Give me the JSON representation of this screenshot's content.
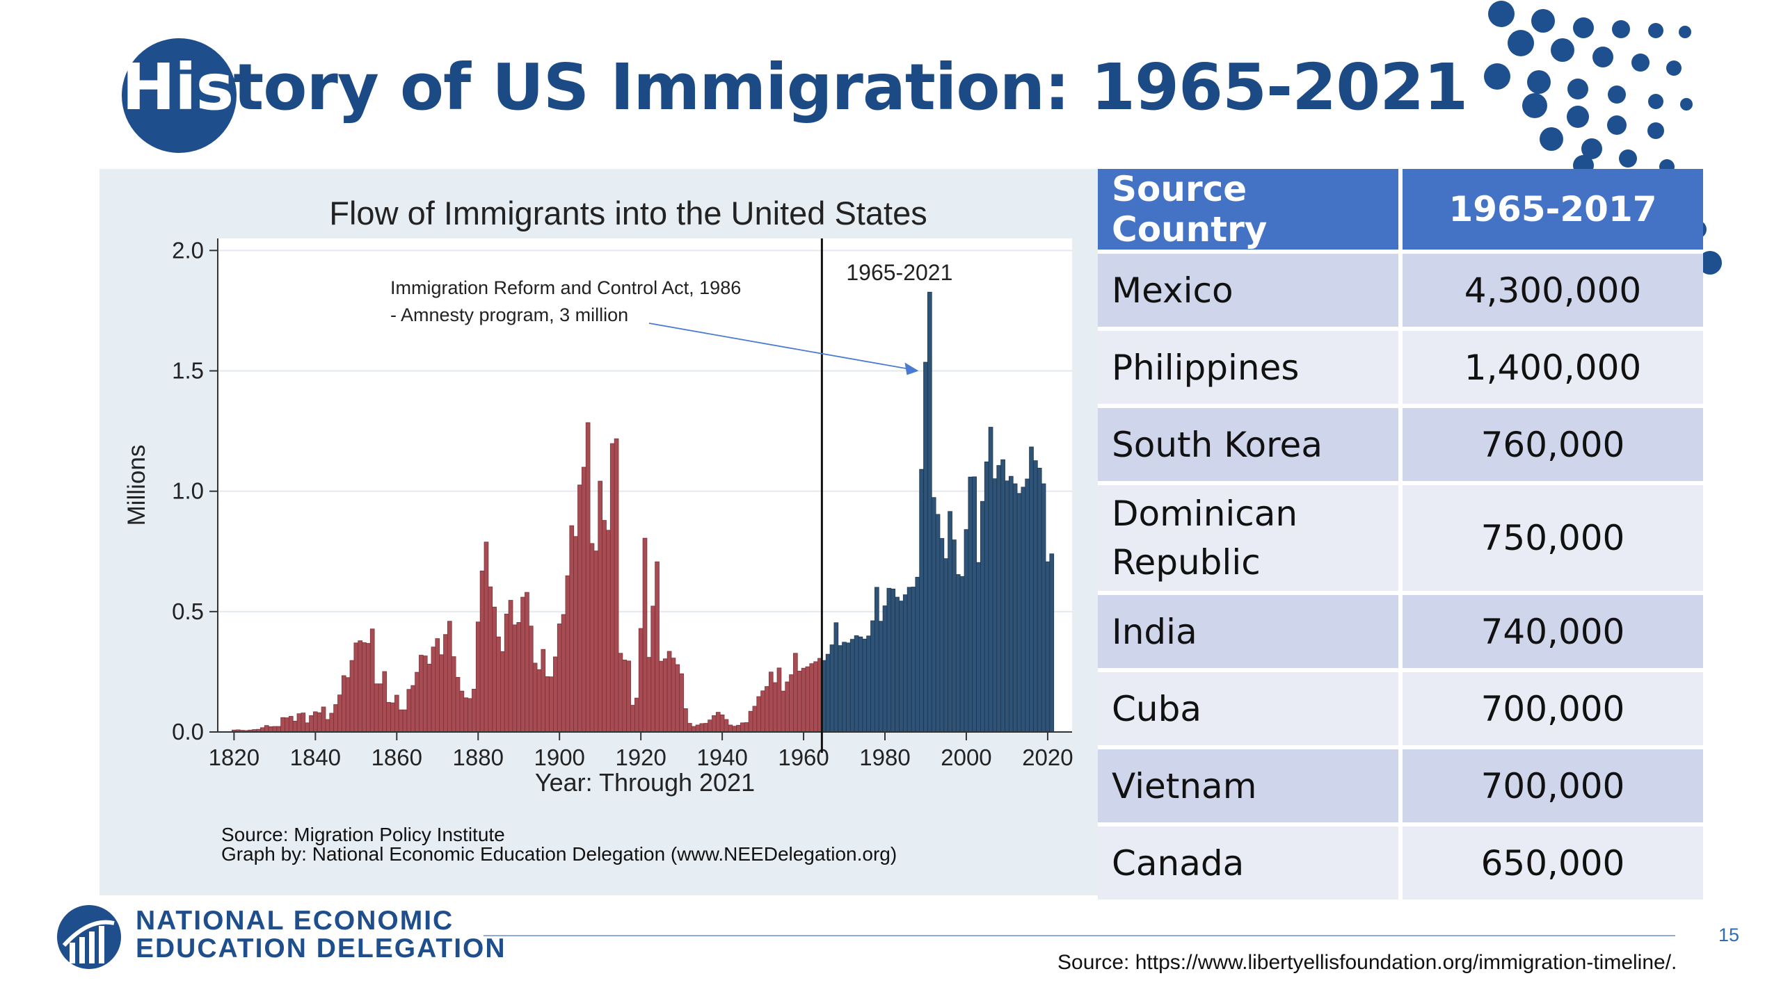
{
  "slide": {
    "title": "History of US Immigration: 1965-2021",
    "title_highlight": "His",
    "title_rest": "tory of US Immigration: 1965-2021",
    "page_number": "15",
    "source_note": "Source: https://www.libertyellisfoundation.org/immigration-timeline/.",
    "logo_line1": "NATIONAL ECONOMIC",
    "logo_line2": "EDUCATION DELEGATION",
    "colors": {
      "brand": "#1f4e8c",
      "table_header": "#4472c4",
      "pre_1965": "#a74c52",
      "post_1965": "#2f5376"
    }
  },
  "chart_data": {
    "type": "bar",
    "title": "Flow of Immigrants into the United States",
    "xlabel": "Year: Through 2021",
    "ylabel": "Millions",
    "xlim": [
      1816,
      2026
    ],
    "ylim": [
      0,
      2.05
    ],
    "xticks": [
      1820,
      1840,
      1860,
      1880,
      1900,
      1920,
      1940,
      1960,
      1980,
      2000,
      2020
    ],
    "yticks": [
      "0.0",
      "0.5",
      "1.0",
      "1.5",
      "2.0"
    ],
    "grid": true,
    "divider_year": 1965,
    "period_label": "1965-2021",
    "annotation": {
      "line1": "Immigration Reform and Control Act, 1986",
      "line2": "- Amnesty program, 3 million",
      "points_to_year": 1990,
      "points_to_value": 1.5
    },
    "series": [
      {
        "period": "1820-1964",
        "start_year": 1820,
        "values": [
          0.008,
          0.009,
          0.007,
          0.006,
          0.008,
          0.01,
          0.011,
          0.018,
          0.027,
          0.022,
          0.023,
          0.023,
          0.06,
          0.059,
          0.065,
          0.045,
          0.076,
          0.079,
          0.038,
          0.068,
          0.084,
          0.08,
          0.104,
          0.052,
          0.078,
          0.114,
          0.154,
          0.234,
          0.226,
          0.297,
          0.37,
          0.379,
          0.371,
          0.368,
          0.428,
          0.2,
          0.2,
          0.251,
          0.123,
          0.121,
          0.153,
          0.092,
          0.092,
          0.177,
          0.193,
          0.248,
          0.319,
          0.316,
          0.282,
          0.353,
          0.388,
          0.321,
          0.405,
          0.46,
          0.313,
          0.227,
          0.17,
          0.142,
          0.139,
          0.178,
          0.457,
          0.669,
          0.789,
          0.603,
          0.519,
          0.395,
          0.334,
          0.49,
          0.547,
          0.445,
          0.455,
          0.56,
          0.58,
          0.44,
          0.286,
          0.259,
          0.343,
          0.23,
          0.229,
          0.312,
          0.449,
          0.488,
          0.649,
          0.857,
          0.812,
          1.026,
          1.1,
          1.285,
          0.783,
          0.752,
          1.042,
          0.879,
          0.838,
          1.198,
          1.218,
          0.327,
          0.299,
          0.295,
          0.111,
          0.141,
          0.43,
          0.805,
          0.31,
          0.523,
          0.707,
          0.294,
          0.304,
          0.335,
          0.307,
          0.28,
          0.242,
          0.097,
          0.036,
          0.023,
          0.029,
          0.035,
          0.036,
          0.05,
          0.068,
          0.082,
          0.071,
          0.052,
          0.029,
          0.024,
          0.028,
          0.038,
          0.039,
          0.086,
          0.107,
          0.147,
          0.171,
          0.189,
          0.249,
          0.205,
          0.266,
          0.17,
          0.208,
          0.238,
          0.327,
          0.253,
          0.265,
          0.271,
          0.284,
          0.292,
          0.306
        ]
      },
      {
        "period": "1965-2021",
        "start_year": 1965,
        "values": [
          0.297,
          0.323,
          0.362,
          0.454,
          0.359,
          0.373,
          0.37,
          0.385,
          0.4,
          0.395,
          0.386,
          0.399,
          0.462,
          0.601,
          0.46,
          0.524,
          0.597,
          0.594,
          0.56,
          0.544,
          0.57,
          0.601,
          0.602,
          0.643,
          1.091,
          1.536,
          1.827,
          0.974,
          0.904,
          0.804,
          0.72,
          0.916,
          0.798,
          0.654,
          0.646,
          0.841,
          1.059,
          1.06,
          0.704,
          0.958,
          1.122,
          1.266,
          1.052,
          1.107,
          1.131,
          1.043,
          1.062,
          1.031,
          0.991,
          1.017,
          1.051,
          1.184,
          1.127,
          1.096,
          1.031,
          0.707,
          0.74
        ]
      }
    ],
    "source_line1": "Source: Migration Policy Institute",
    "source_line2": "Graph by: National Economic Education Delegation (www.NEEDelegation.org)"
  },
  "table": {
    "headers": [
      "Source Country",
      "1965-2017"
    ],
    "rows": [
      {
        "country": "Mexico",
        "value": "4,300,000"
      },
      {
        "country": "Philippines",
        "value": "1,400,000"
      },
      {
        "country": "South Korea",
        "value": "760,000"
      },
      {
        "country": "Dominican Republic",
        "country_l1": "Dominican",
        "country_l2": "Republic",
        "value": "750,000"
      },
      {
        "country": "India",
        "value": "740,000"
      },
      {
        "country": "Cuba",
        "value": "700,000"
      },
      {
        "country": "Vietnam",
        "value": "700,000"
      },
      {
        "country": "Canada",
        "value": "650,000"
      }
    ]
  }
}
